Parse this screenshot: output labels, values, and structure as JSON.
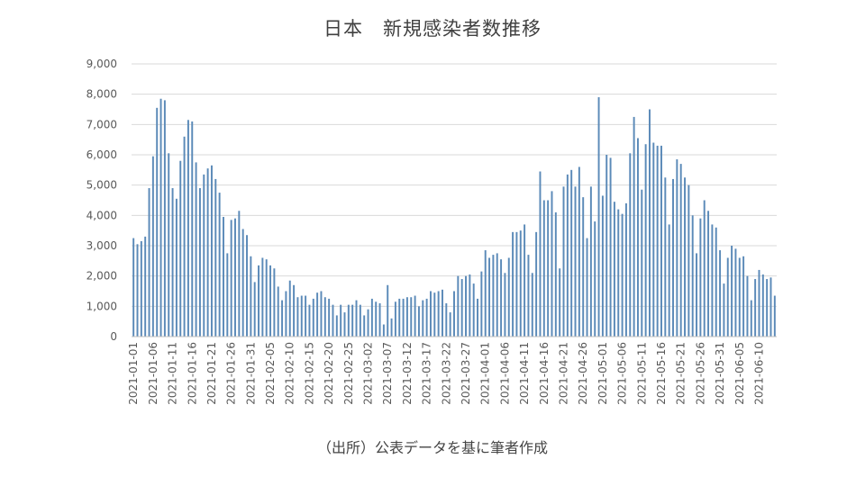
{
  "source_note": "（出所）公表データを基に筆者作成",
  "colors": {
    "bar": "#5b8ab8",
    "grid": "#d9d9d9",
    "text": "#595959",
    "title": "#404040"
  },
  "chart_data": {
    "type": "bar",
    "title": "日本　新規感染者数推移",
    "xlabel": "",
    "ylabel": "",
    "ylim": [
      0,
      9000
    ],
    "yticks": [
      0,
      1000,
      2000,
      3000,
      4000,
      5000,
      6000,
      7000,
      8000,
      9000
    ],
    "ytick_labels": [
      "0",
      "1,000",
      "2,000",
      "3,000",
      "4,000",
      "5,000",
      "6,000",
      "7,000",
      "8,000",
      "9,000"
    ],
    "xtick_labels": [
      "2021-01-01",
      "2021-01-06",
      "2021-01-11",
      "2021-01-16",
      "2021-01-21",
      "2021-01-26",
      "2021-01-31",
      "2021-02-05",
      "2021-02-10",
      "2021-02-15",
      "2021-02-20",
      "2021-02-25",
      "2021-03-02",
      "2021-03-07",
      "2021-03-12",
      "2021-03-17",
      "2021-03-22",
      "2021-03-27",
      "2021-04-01",
      "2021-04-06",
      "2021-04-11",
      "2021-04-16",
      "2021-04-21",
      "2021-04-26",
      "2021-05-01",
      "2021-05-06",
      "2021-05-11",
      "2021-05-16",
      "2021-05-21",
      "2021-05-26",
      "2021-05-31",
      "2021-06-05",
      "2021-06-10"
    ],
    "grid": true,
    "legend": "none",
    "start_date": "2021-01-01",
    "values": [
      3250,
      3050,
      3150,
      3300,
      4900,
      5950,
      7550,
      7850,
      7800,
      6050,
      4900,
      4550,
      5800,
      6600,
      7150,
      7100,
      5750,
      4900,
      5350,
      5550,
      5650,
      5200,
      4750,
      3950,
      2750,
      3850,
      3900,
      4150,
      3550,
      3350,
      2650,
      1800,
      2350,
      2600,
      2550,
      2350,
      2250,
      1650,
      1200,
      1500,
      1850,
      1700,
      1300,
      1350,
      1350,
      1050,
      1250,
      1450,
      1500,
      1300,
      1250,
      1050,
      700,
      1050,
      800,
      1050,
      1050,
      1200,
      1050,
      700,
      900,
      1250,
      1150,
      1100,
      400,
      1700,
      600,
      1150,
      1250,
      1250,
      1300,
      1300,
      1350,
      1000,
      1200,
      1250,
      1500,
      1450,
      1500,
      1550,
      1100,
      800,
      1500,
      2000,
      1900,
      2000,
      2050,
      1750,
      1250,
      2150,
      2850,
      2600,
      2700,
      2750,
      2550,
      2100,
      2600,
      3450,
      3450,
      3500,
      3700,
      2700,
      2100,
      3450,
      5450,
      4500,
      4500,
      4800,
      4100,
      2250,
      4950,
      5350,
      5500,
      4950,
      5600,
      4600,
      3250,
      4950,
      3800,
      7900,
      4650,
      6000,
      5900,
      4450,
      4200,
      4050,
      4400,
      6050,
      7250,
      6550,
      4850,
      6350,
      7500,
      6400,
      6300,
      6300,
      5250,
      3700,
      5200,
      5850,
      5700,
      5250,
      5000,
      4000,
      2750,
      3900,
      4500,
      4150,
      3700,
      3600,
      2850,
      1750,
      2600,
      3000,
      2900,
      2600,
      2650,
      2000,
      1200,
      1900,
      2200,
      2050,
      1900,
      1950,
      1350
    ]
  }
}
